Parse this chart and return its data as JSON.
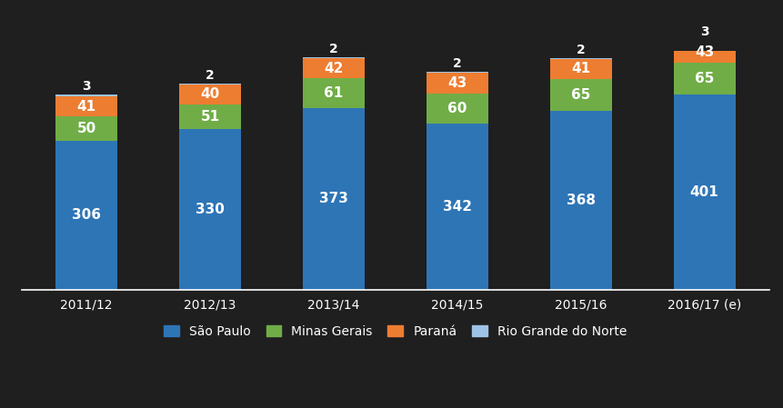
{
  "categories": [
    "2011/12",
    "2012/13",
    "2013/14",
    "2014/15",
    "2015/16",
    "2016/17 (e)"
  ],
  "sao_paulo": [
    306,
    330,
    373,
    342,
    368,
    401
  ],
  "minas_gerais": [
    50,
    51,
    61,
    60,
    65,
    65
  ],
  "parana": [
    41,
    40,
    42,
    43,
    41,
    43
  ],
  "rio_grande_norte": [
    3,
    2,
    2,
    2,
    2,
    3
  ],
  "colors": {
    "sao_paulo": "#2E75B6",
    "minas_gerais": "#70AD47",
    "parana": "#ED7D31",
    "rio_grande_norte": "#9DC3E6"
  },
  "legend_labels": [
    "São Paulo",
    "Minas Gerais",
    "Paraná",
    "Rio Grande do Norte"
  ],
  "background_color": "#1F1F1F",
  "bar_width": 0.5,
  "label_fontsize": 11,
  "tick_fontsize": 10,
  "legend_fontsize": 10,
  "ylim": [
    0,
    490
  ]
}
